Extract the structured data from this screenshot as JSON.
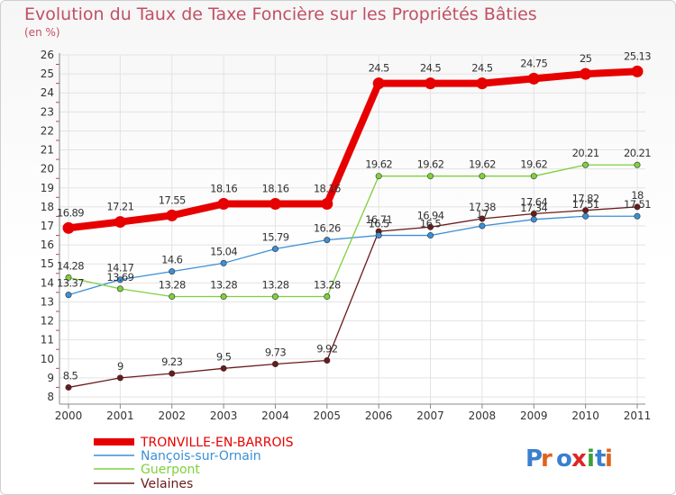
{
  "chart_data": {
    "type": "line",
    "title": "Evolution du Taux de Taxe Foncière sur les Propriétés Bâties",
    "subtitle": "(en %)",
    "x": [
      "2000",
      "2001",
      "2002",
      "2003",
      "2004",
      "2005",
      "2006",
      "2007",
      "2008",
      "2009",
      "2010",
      "2011"
    ],
    "y_ticks": [
      "8",
      "9",
      "10",
      "11",
      "12",
      "13",
      "14",
      "15",
      "16",
      "17",
      "18",
      "19",
      "20",
      "21",
      "22",
      "23",
      "24",
      "25",
      "26"
    ],
    "ylim": [
      8,
      26
    ],
    "grid": true,
    "legend_position": "bottom-left",
    "series": [
      {
        "name": "TRONVILLE-EN-BARROIS",
        "color": "#e60000",
        "values": [
          16.89,
          17.21,
          17.55,
          18.16,
          18.16,
          18.16,
          24.5,
          24.5,
          24.5,
          24.75,
          25,
          25.13
        ],
        "labels": [
          "16.89",
          "17.21",
          "17.55",
          "18.16",
          "18.16",
          "18.16",
          "24.5",
          "24.5",
          "24.5",
          "24.75",
          "25",
          "25.13"
        ]
      },
      {
        "name": "Nançois-sur-Ornain",
        "color": "#3b8fd6",
        "values": [
          13.37,
          14.17,
          14.6,
          15.04,
          15.79,
          16.26,
          16.5,
          16.5,
          17,
          17.34,
          17.51,
          17.51
        ],
        "labels": [
          "13.37",
          "14.17",
          "14.6",
          "15.04",
          "15.79",
          "16.26",
          "16.5",
          "16.5",
          "17",
          "17.34",
          "17.51",
          "17.51"
        ]
      },
      {
        "name": "Guerpont",
        "color": "#7fd03c",
        "values": [
          14.28,
          13.69,
          13.28,
          13.28,
          13.28,
          13.28,
          19.62,
          19.62,
          19.62,
          19.62,
          20.21,
          20.21
        ],
        "labels": [
          "14.28",
          "13.69",
          "13.28",
          "13.28",
          "13.28",
          "13.28",
          "19.62",
          "19.62",
          "19.62",
          "19.62",
          "20.21",
          "20.21"
        ]
      },
      {
        "name": "Velaines",
        "color": "#6b1a1a",
        "values": [
          8.5,
          9,
          9.23,
          9.5,
          9.73,
          9.92,
          16.71,
          16.94,
          17.38,
          17.64,
          17.82,
          18
        ],
        "labels": [
          "8.5",
          "9",
          "9.23",
          "9.5",
          "9.73",
          "9.92",
          "16.71",
          "16.94",
          "17.38",
          "17.64",
          "17.82",
          "18"
        ]
      }
    ]
  },
  "branding": {
    "logo_text": "Proxiti",
    "logo_colors": [
      "#3a7fd0",
      "#e0621b",
      "#3a7fd0",
      "#e02424",
      "#3aa03a",
      "#3a7fd0",
      "#e0621b"
    ]
  }
}
